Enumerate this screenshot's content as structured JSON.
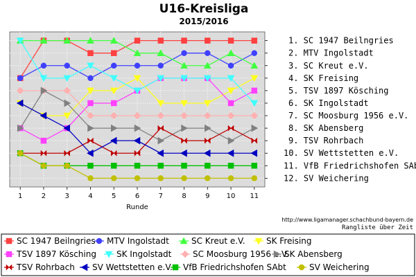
{
  "chart_data": {
    "type": "line",
    "title": "U16-Kreisliga",
    "subtitle": "2015/2016",
    "xlabel": "Runde",
    "x": [
      1,
      2,
      3,
      4,
      5,
      6,
      7,
      8,
      9,
      10,
      11
    ],
    "ylim": [
      12,
      1
    ],
    "y_inverted": true,
    "grid": true,
    "source_note": "http://www.ligamanager.schachbund-bayern.de",
    "caption": "Rangliste über Zeit",
    "legend_position": "bottom",
    "rank_labels": [
      "1. SC 1947 Beilngries",
      "2. MTV Ingolstadt",
      "3. SC Kreut e.V.",
      "4. SK Freising",
      "5. TSV 1897 Kösching",
      "6. SK Ingolstadt",
      "7. SC Moosburg 1956 e.V.",
      "8. SK Abensberg",
      "9. TSV Rohrbach",
      "10. SV Wettstetten e.V.",
      "11. VfB Friedrichshofen SAbt",
      "12. SV Weichering"
    ],
    "series": [
      {
        "name": "SC 1947 Beilngries",
        "color": "#ff4040",
        "marker": "square",
        "values": [
          4,
          1,
          1,
          2,
          2,
          1,
          1,
          1,
          1,
          1,
          1
        ]
      },
      {
        "name": "MTV Ingolstadt",
        "color": "#4040ff",
        "marker": "circle",
        "values": [
          4,
          3,
          3,
          4,
          3,
          3,
          3,
          2,
          2,
          3,
          2
        ]
      },
      {
        "name": "SC Kreut e.V.",
        "color": "#40ff40",
        "marker": "triangle-up",
        "values": [
          1,
          1,
          1,
          1,
          1,
          2,
          2,
          3,
          3,
          2,
          3
        ]
      },
      {
        "name": "SK Freising",
        "color": "#ffff20",
        "marker": "triangle-down",
        "values": [
          6,
          7,
          7,
          5,
          5,
          4,
          6,
          6,
          6,
          5,
          4
        ]
      },
      {
        "name": "TSV 1897 Kösching",
        "color": "#ff40ff",
        "marker": "square",
        "values": [
          8,
          9,
          8,
          6,
          6,
          5,
          4,
          4,
          4,
          6,
          5
        ]
      },
      {
        "name": "SK Ingolstadt",
        "color": "#40ffff",
        "marker": "triangle-down",
        "values": [
          1,
          4,
          4,
          3,
          4,
          5,
          4,
          4,
          4,
          4,
          6
        ]
      },
      {
        "name": "SC Moosburg 1956 e.V.",
        "color": "#ffb0b0",
        "marker": "diamond",
        "values": [
          5,
          5,
          5,
          7,
          7,
          7,
          7,
          7,
          7,
          7,
          7
        ]
      },
      {
        "name": "SK Abensberg",
        "color": "#808080",
        "marker": "triangle-right",
        "values": [
          8,
          5,
          6,
          8,
          8,
          8,
          9,
          8,
          8,
          9,
          8
        ]
      },
      {
        "name": "TSV Rohrbach",
        "color": "#c00000",
        "marker": "bowtie",
        "values": [
          10,
          10,
          10,
          9,
          10,
          10,
          8,
          9,
          9,
          8,
          9
        ]
      },
      {
        "name": "SV Wettstetten e.V.",
        "color": "#0000c0",
        "marker": "triangle-left",
        "values": [
          6,
          7,
          8,
          10,
          9,
          9,
          10,
          10,
          10,
          10,
          10
        ]
      },
      {
        "name": "VfB Friedrichshofen SAbt",
        "color": "#00c000",
        "marker": "square",
        "values": [
          10,
          11,
          11,
          11,
          11,
          11,
          11,
          11,
          11,
          11,
          11
        ]
      },
      {
        "name": "SV Weichering",
        "color": "#c0c000",
        "marker": "circle",
        "values": [
          10,
          11,
          11,
          12,
          12,
          12,
          12,
          12,
          12,
          12,
          12
        ]
      }
    ]
  }
}
